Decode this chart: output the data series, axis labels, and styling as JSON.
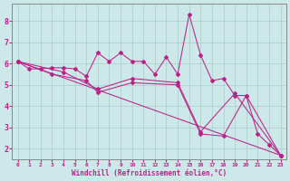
{
  "xlabel": "Windchill (Refroidissement éolien,°C)",
  "background_color": "#cde8e8",
  "line_color": "#bb2288",
  "grid_color": "#aacccc",
  "xlim": [
    -0.5,
    23.5
  ],
  "ylim": [
    1.5,
    8.8
  ],
  "xticks": [
    0,
    1,
    2,
    3,
    4,
    5,
    6,
    7,
    8,
    9,
    10,
    11,
    12,
    13,
    14,
    15,
    16,
    17,
    18,
    19,
    20,
    21,
    22,
    23
  ],
  "yticks": [
    2,
    3,
    4,
    5,
    6,
    7,
    8
  ],
  "lines": [
    {
      "x": [
        0,
        1,
        2,
        3,
        4,
        5,
        6,
        7,
        8,
        9,
        10,
        11,
        12,
        13,
        14,
        15,
        16,
        17,
        18,
        19,
        20,
        21,
        22,
        23
      ],
      "y": [
        6.1,
        5.75,
        5.75,
        5.8,
        5.8,
        5.75,
        5.4,
        6.5,
        6.1,
        6.5,
        6.1,
        6.1,
        5.5,
        6.3,
        5.5,
        8.3,
        6.4,
        5.2,
        5.3,
        4.5,
        4.5,
        2.7,
        2.2,
        1.7
      ]
    },
    {
      "x": [
        0,
        23
      ],
      "y": [
        6.1,
        1.7
      ]
    },
    {
      "x": [
        0,
        3,
        6,
        7,
        10,
        14,
        16,
        18,
        20,
        23
      ],
      "y": [
        6.1,
        5.5,
        5.2,
        4.65,
        5.1,
        5.0,
        2.7,
        2.6,
        4.5,
        1.7
      ]
    },
    {
      "x": [
        0,
        4,
        7,
        10,
        14,
        16,
        19,
        23
      ],
      "y": [
        6.1,
        5.6,
        4.8,
        5.3,
        5.1,
        2.8,
        4.6,
        1.7
      ]
    }
  ]
}
